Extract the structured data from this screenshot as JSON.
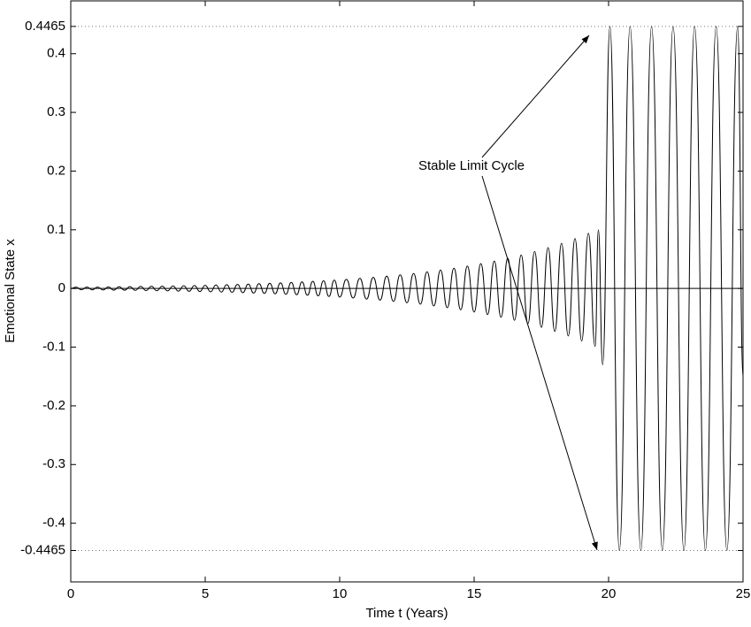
{
  "chart_data": {
    "type": "line",
    "xlabel": "Time t (Years)",
    "ylabel": "Emotional State x",
    "annotation": "Stable Limit Cycle",
    "color": "#000000",
    "xlim": [
      0,
      25
    ],
    "ylim": [
      -0.5,
      0.49
    ],
    "xticks": [
      0,
      5,
      10,
      15,
      20,
      25
    ],
    "yticks": [
      -0.4465,
      -0.4,
      -0.3,
      -0.2,
      -0.1,
      0,
      0.1,
      0.2,
      0.3,
      0.4,
      0.4465
    ],
    "dotted_lines": [
      0.4465,
      -0.4465
    ],
    "zero_line": true,
    "x": [
      0,
      0.2,
      0.4,
      0.6,
      0.8,
      1.0,
      1.2,
      1.4,
      1.6,
      1.8,
      2.0,
      2.2,
      2.4,
      2.6,
      2.8,
      3.0,
      3.2,
      3.4,
      3.6,
      3.8,
      4.0,
      4.2,
      4.4,
      4.6,
      4.8,
      5.0,
      5.2,
      5.4,
      5.6,
      5.8,
      6.0,
      6.2,
      6.4,
      6.6,
      6.8,
      7.0,
      7.2,
      7.4,
      7.6,
      7.8,
      8.0,
      8.2,
      8.4,
      8.6,
      8.8,
      9.0,
      9.2,
      9.4,
      9.6,
      9.8,
      10.0,
      10.25,
      10.5,
      10.75,
      11.0,
      11.25,
      11.5,
      11.75,
      12.0,
      12.25,
      12.5,
      12.75,
      13.0,
      13.25,
      13.5,
      13.75,
      14.0,
      14.25,
      14.5,
      14.75,
      15.0,
      15.25,
      15.5,
      15.75,
      16.0,
      16.25,
      16.5,
      16.75,
      17.0,
      17.25,
      17.5,
      17.75,
      18.0,
      18.25,
      18.5,
      18.75,
      19.0,
      19.25,
      19.5,
      19.62,
      19.78,
      20.05,
      20.4,
      20.8,
      21.2,
      21.6,
      22.0,
      22.4,
      22.8,
      23.2,
      23.6,
      24.0,
      24.4,
      24.8,
      25.0
    ],
    "values": [
      0,
      0.0021,
      -0.0022,
      0.0023,
      -0.0023,
      0.0024,
      -0.0025,
      0.0026,
      -0.0028,
      0.0029,
      -0.003,
      0.0031,
      -0.0032,
      0.0034,
      -0.0035,
      0.0036,
      -0.0038,
      0.0039,
      -0.0041,
      0.0043,
      -0.0045,
      0.0046,
      -0.0048,
      0.005,
      -0.0052,
      0.0054,
      -0.0057,
      0.0059,
      -0.0061,
      0.0064,
      -0.0066,
      0.0069,
      -0.0072,
      0.0075,
      -0.0078,
      0.0081,
      -0.0084,
      0.0088,
      -0.0091,
      0.0095,
      -0.0099,
      0.0103,
      -0.0107,
      0.0112,
      -0.0116,
      0.0121,
      -0.0126,
      0.0131,
      -0.0136,
      0.0142,
      -0.0148,
      0.0155,
      -0.0163,
      0.0172,
      -0.0181,
      0.019,
      -0.0199,
      0.021,
      -0.022,
      0.0232,
      -0.0244,
      0.0256,
      -0.0269,
      0.0283,
      -0.0298,
      0.0313,
      -0.0329,
      0.0346,
      -0.0363,
      0.0382,
      -0.0402,
      0.0422,
      -0.0444,
      0.0467,
      -0.0491,
      0.0516,
      -0.0542,
      0.057,
      -0.0599,
      0.063,
      -0.0662,
      0.0696,
      -0.0732,
      0.0769,
      -0.0809,
      0.085,
      -0.0894,
      0.094,
      -0.0988,
      0.1,
      -0.13,
      0.4465,
      -0.4465,
      0.4465,
      -0.4465,
      0.4465,
      -0.4465,
      0.4465,
      -0.4465,
      0.4465,
      -0.4465,
      0.4465,
      -0.4465,
      0.4465,
      -0.15
    ]
  }
}
